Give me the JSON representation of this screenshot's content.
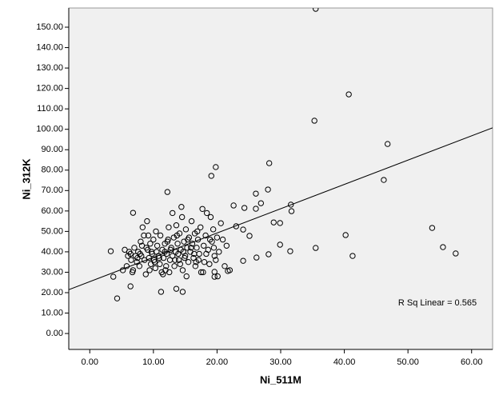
{
  "chart_data": {
    "type": "scatter",
    "x_label": "Ni_511M",
    "y_label": "Ni_312K",
    "annotation": "R Sq Linear = 0.565",
    "xlim": [
      -3.3,
      63.3
    ],
    "ylim": [
      -7.8,
      159.4
    ],
    "xticks": [
      {
        "value": 0,
        "label": "0.00"
      },
      {
        "value": 10,
        "label": "10.00"
      },
      {
        "value": 20,
        "label": "20.00"
      },
      {
        "value": 30,
        "label": "30.00"
      },
      {
        "value": 40,
        "label": "40.00"
      },
      {
        "value": 50,
        "label": "50.00"
      },
      {
        "value": 60,
        "label": "60.00"
      }
    ],
    "yticks": [
      {
        "value": 0,
        "label": "0.00"
      },
      {
        "value": 10,
        "label": "10.00"
      },
      {
        "value": 20,
        "label": "20.00"
      },
      {
        "value": 30,
        "label": "30.00"
      },
      {
        "value": 40,
        "label": "40.00"
      },
      {
        "value": 50,
        "label": "50.00"
      },
      {
        "value": 60,
        "label": "60.00"
      },
      {
        "value": 70,
        "label": "70.00"
      },
      {
        "value": 80,
        "label": "80.00"
      },
      {
        "value": 90,
        "label": "90.00"
      },
      {
        "value": 100,
        "label": "100.00"
      },
      {
        "value": 110,
        "label": "110.00"
      },
      {
        "value": 120,
        "label": "120.00"
      },
      {
        "value": 130,
        "label": "130.00"
      },
      {
        "value": 140,
        "label": "140.00"
      },
      {
        "value": 150,
        "label": "150.00"
      }
    ],
    "color": "#000000",
    "trendline": {
      "intercept": 25.4,
      "slope": 1.19
    },
    "x": [
      35.5,
      40.7,
      35.3,
      46.8,
      46.2,
      28.2,
      19.8,
      19.1,
      28.0,
      26.1,
      12.2,
      6.8,
      31.6,
      31.7,
      26.9,
      26.1,
      24.3,
      22.6,
      28.9,
      29.9,
      25.1,
      53.8,
      40.2,
      55.5,
      57.5,
      41.3,
      35.5,
      31.5,
      29.9,
      28.1,
      26.2,
      24.1,
      3.3,
      3.7,
      4.3,
      6.4,
      11.2,
      14.6,
      13.6,
      19.6,
      21.7,
      19.6,
      24.1,
      23.0,
      5.2,
      5.8,
      6,
      6.2,
      6.5,
      6.8,
      7,
      7.2,
      7.4,
      7.6,
      7.8,
      8,
      8.1,
      8.3,
      8.5,
      8.6,
      8.8,
      9,
      9.1,
      9.3,
      9.5,
      9.6,
      9.8,
      10,
      10.1,
      10.3,
      10.5,
      10.6,
      10.8,
      11,
      11.1,
      11.3,
      11.4,
      11.6,
      11.8,
      12,
      12.1,
      12.3,
      12.4,
      12.6,
      12.8,
      13,
      13,
      13.2,
      13.3,
      13.5,
      13.6,
      13.8,
      14,
      14.1,
      14.3,
      14.4,
      14.5,
      14.6,
      14.8,
      15,
      15.1,
      15.3,
      15.5,
      15.6,
      15.8,
      16,
      16.1,
      16.3,
      16.5,
      16.6,
      16.8,
      17,
      17.2,
      17.4,
      17.5,
      17.7,
      17.9,
      18,
      18.2,
      18.4,
      18.6,
      18.8,
      19,
      19.2,
      19.4,
      19.6,
      19.8,
      20,
      20.3,
      20.6,
      20.9,
      21.2,
      21.5,
      22,
      5.5,
      6.7,
      7.5,
      8.2,
      9.4,
      10.2,
      11.5,
      12.2,
      13.4,
      14.2,
      15.4,
      16.4,
      17.1,
      18.3,
      11.8,
      12.7,
      13.9,
      14.7,
      15.9,
      10.9,
      9.7,
      8.9,
      7.9,
      6.4,
      12.5,
      13.7,
      16.9,
      11.9,
      10.4,
      9.2,
      15.2,
      18.9,
      20.1,
      17.8,
      16.7,
      14.9,
      19.5
    ],
    "y": [
      159,
      117.1,
      104.2,
      92.8,
      75.2,
      83.4,
      81.5,
      77.2,
      70.5,
      68.5,
      69.3,
      59.1,
      63.1,
      59.9,
      63.8,
      61.1,
      61.5,
      62.7,
      54.4,
      54.1,
      47.8,
      51.7,
      48.2,
      42.3,
      39.2,
      38.0,
      41.9,
      40.3,
      43.5,
      38.8,
      37.2,
      35.6,
      40.3,
      27.8,
      17.2,
      23.1,
      20.4,
      20.4,
      21.9,
      27.8,
      30.6,
      30.2,
      50.9,
      52.5,
      31,
      33,
      38,
      40,
      36,
      31,
      42,
      38,
      35,
      40,
      33,
      45,
      38,
      52,
      48,
      36,
      29,
      55,
      41,
      37,
      44,
      34,
      39,
      46,
      36,
      32,
      40,
      43,
      38,
      34,
      48,
      30,
      41,
      37,
      44,
      33,
      39,
      46,
      52,
      36,
      42,
      59,
      38,
      47,
      33,
      40,
      53,
      44,
      36,
      49,
      41,
      62,
      57,
      31,
      45,
      38,
      51,
      42,
      35,
      47,
      40,
      55,
      44,
      37,
      49,
      33,
      42,
      46,
      39,
      52,
      30,
      61,
      43,
      35,
      48,
      59,
      41,
      34,
      57,
      45,
      51,
      38,
      36,
      47,
      40,
      54,
      46,
      33,
      43,
      31,
      41,
      30,
      37,
      43,
      31,
      35,
      29,
      45,
      36,
      34,
      46,
      39,
      36,
      39,
      40,
      41,
      39,
      40,
      42,
      37,
      40,
      42,
      39,
      39,
      30,
      48,
      50,
      31,
      50,
      48,
      28,
      46,
      28,
      30,
      35,
      37,
      42
    ]
  }
}
